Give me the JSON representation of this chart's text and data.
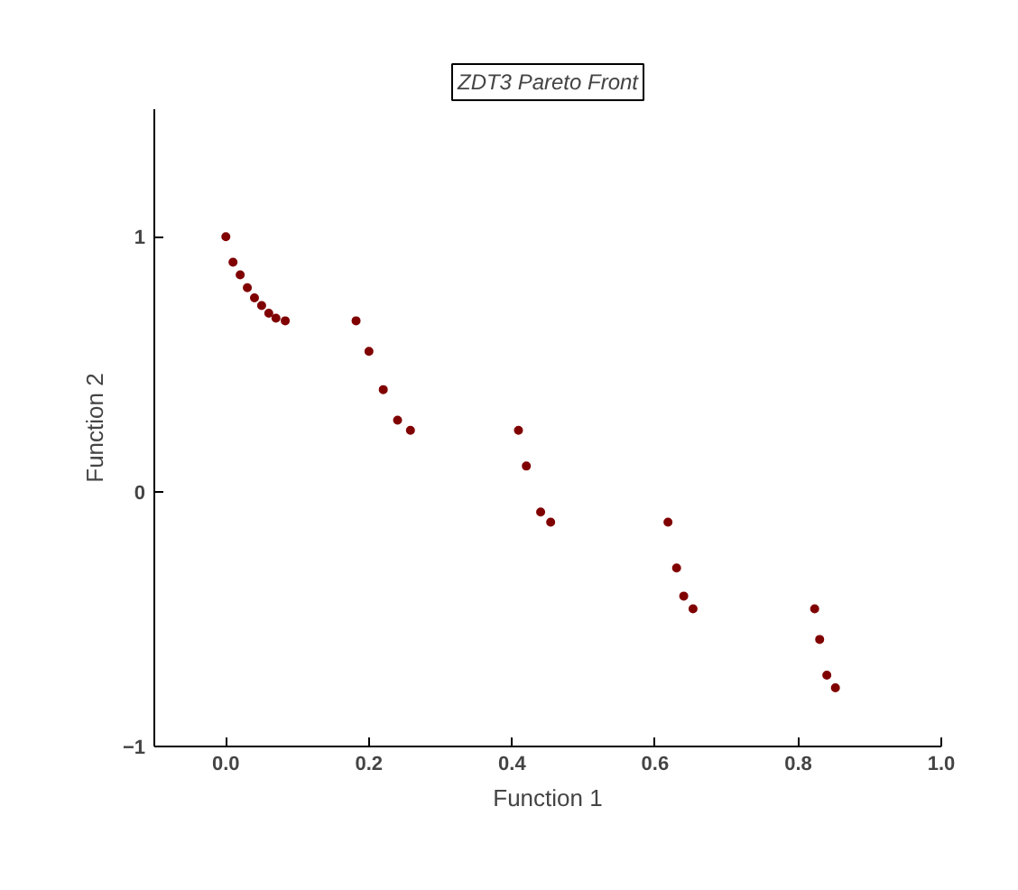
{
  "chart_data": {
    "type": "scatter",
    "title": "ZDT3 Pareto Front",
    "xlabel": "Function 1",
    "ylabel": "Function 2",
    "x": [
      0,
      0.01,
      0.02,
      0.03,
      0.04,
      0.05,
      0.06,
      0.07,
      0.083,
      0.182,
      0.2,
      0.22,
      0.24,
      0.258,
      0.409,
      0.42,
      0.44,
      0.454,
      0.618,
      0.63,
      0.64,
      0.653,
      0.823,
      0.83,
      0.84,
      0.852
    ],
    "series": [
      {
        "color": "#800000",
        "values": [
          1,
          0.9,
          0.85,
          0.8,
          0.76,
          0.73,
          0.7,
          0.68,
          0.67,
          0.67,
          0.55,
          0.4,
          0.28,
          0.24,
          0.24,
          0.1,
          -0.08,
          -0.12,
          -0.12,
          -0.3,
          -0.41,
          -0.46,
          -0.46,
          -0.58,
          -0.72,
          -0.77
        ]
      }
    ],
    "xlim": [
      -0.1,
      1.0
    ],
    "ylim": [
      -1,
      1.5
    ],
    "xticks": [
      {
        "value": 0,
        "label": "0.0"
      },
      0.2,
      0.4,
      0.6,
      0.8,
      {
        "value": 1,
        "label": "1.0"
      }
    ],
    "yticks": [
      -1,
      0,
      1
    ],
    "grid": false,
    "marker": "circle"
  }
}
